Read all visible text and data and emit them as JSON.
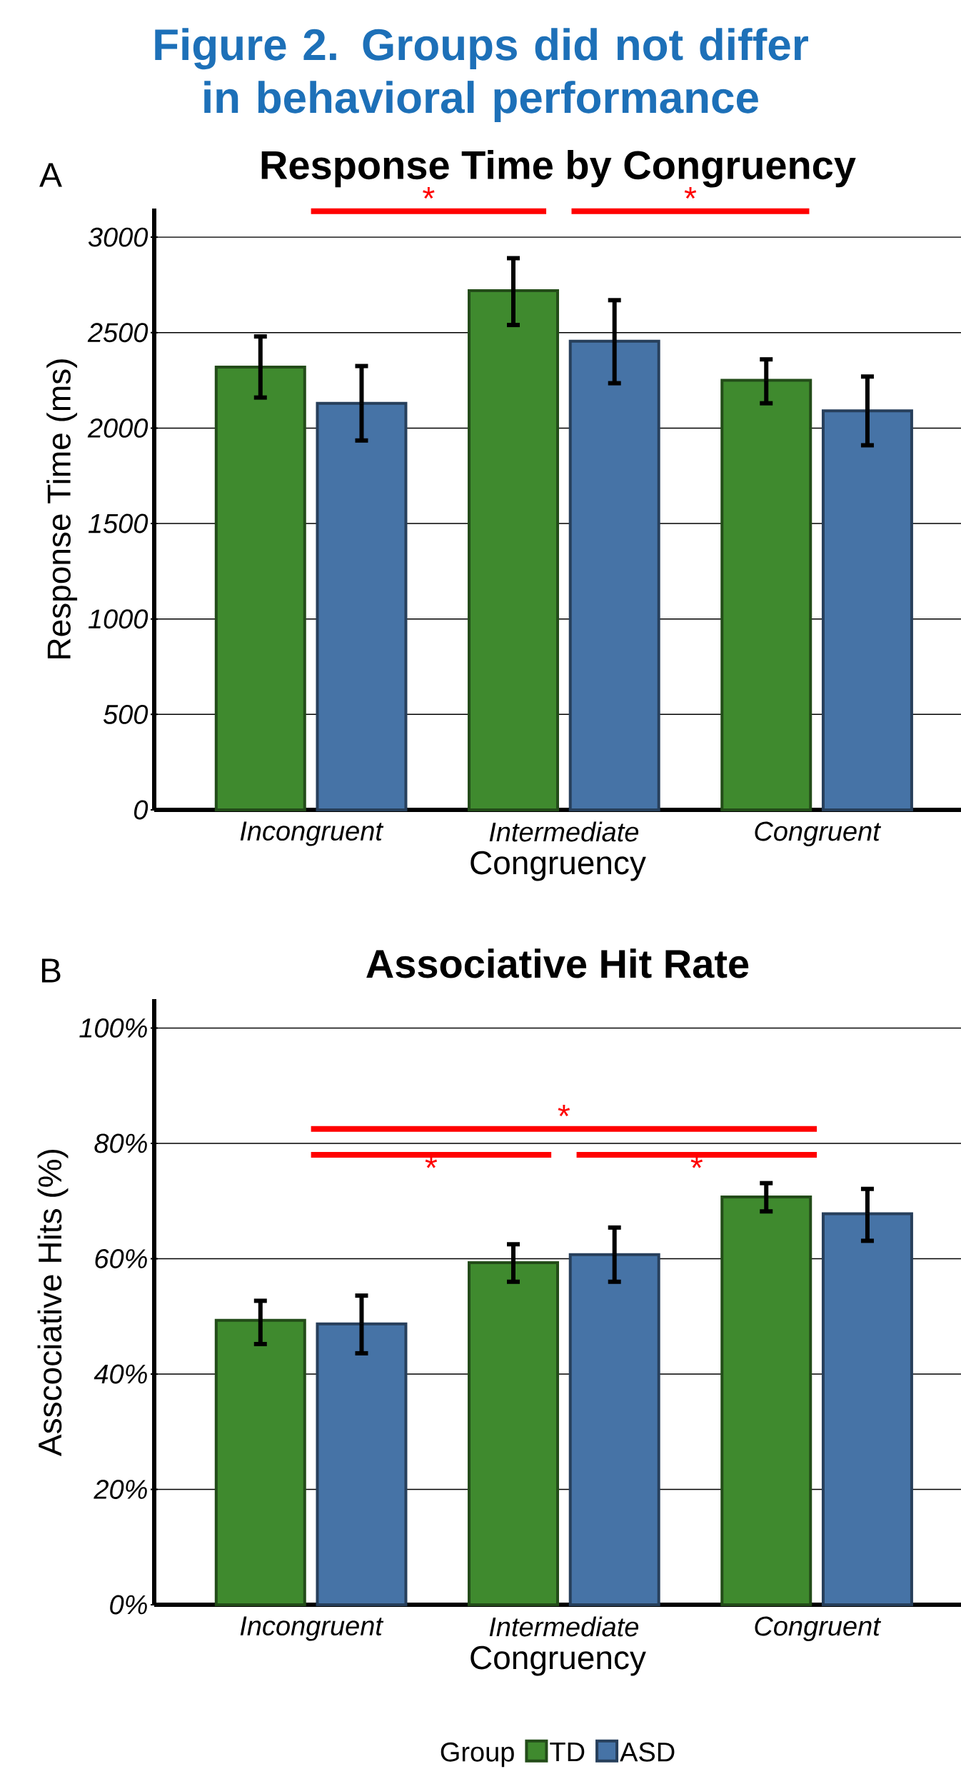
{
  "chart_data": [
    {
      "type": "bar",
      "title": "Response Time by Congruency",
      "xlabel": "Congruency",
      "ylabel": "Response Time (ms)",
      "annotations": [
        "Figure 2. Groups did not differ in behavioral performance",
        "A",
        "*",
        "*"
      ],
      "categories": [
        "Incongruent",
        "Intermediate",
        "Congruent"
      ],
      "series": [
        {
          "color": "#3f8a2e",
          "values": [
            2320,
            2720,
            2250
          ],
          "errors": [
            [
              2160,
              2480
            ],
            [
              2540,
              2890
            ],
            [
              2130,
              2360
            ]
          ]
        },
        {
          "color": "#4673a6",
          "values": [
            2130,
            2455,
            2090
          ],
          "errors": [
            [
              1935,
              2325
            ],
            [
              2235,
              2670
            ],
            [
              1910,
              2270
            ]
          ]
        }
      ],
      "ylim": [
        0,
        3150
      ],
      "yticks": [
        0,
        500,
        1000,
        1500,
        2000,
        2500,
        3000
      ],
      "grid": "y"
    },
    {
      "type": "bar",
      "title": "Associative Hit Rate",
      "xlabel": "Congruency",
      "ylabel": "Asscociative Hits (%)",
      "annotations": [
        "B",
        "*",
        "*",
        "*"
      ],
      "categories": [
        "Incongruent",
        "Intermediate",
        "Congruent"
      ],
      "legend_title": "Group",
      "legend": "bottom",
      "series": [
        {
          "name": "TD",
          "color": "#3f8a2e",
          "values": [
            49.3,
            59.3,
            70.7
          ],
          "errors": [
            [
              45.2,
              52.7
            ],
            [
              56.0,
              62.5
            ],
            [
              68.2,
              73.1
            ]
          ]
        },
        {
          "name": "ASD",
          "color": "#4673a6",
          "values": [
            48.7,
            60.7,
            67.8
          ],
          "errors": [
            [
              43.6,
              53.6
            ],
            [
              56.0,
              65.4
            ],
            [
              63.1,
              72.1
            ]
          ]
        }
      ],
      "ylim": [
        0,
        105
      ],
      "yticks": [
        {
          "value": 0,
          "label": "0%"
        },
        {
          "value": 20,
          "label": "20%"
        },
        {
          "value": 40,
          "label": "40%"
        },
        {
          "value": 60,
          "label": "60%"
        },
        {
          "value": 80,
          "label": "80%"
        },
        {
          "value": 100,
          "label": "100%"
        }
      ],
      "grid": "y"
    }
  ]
}
